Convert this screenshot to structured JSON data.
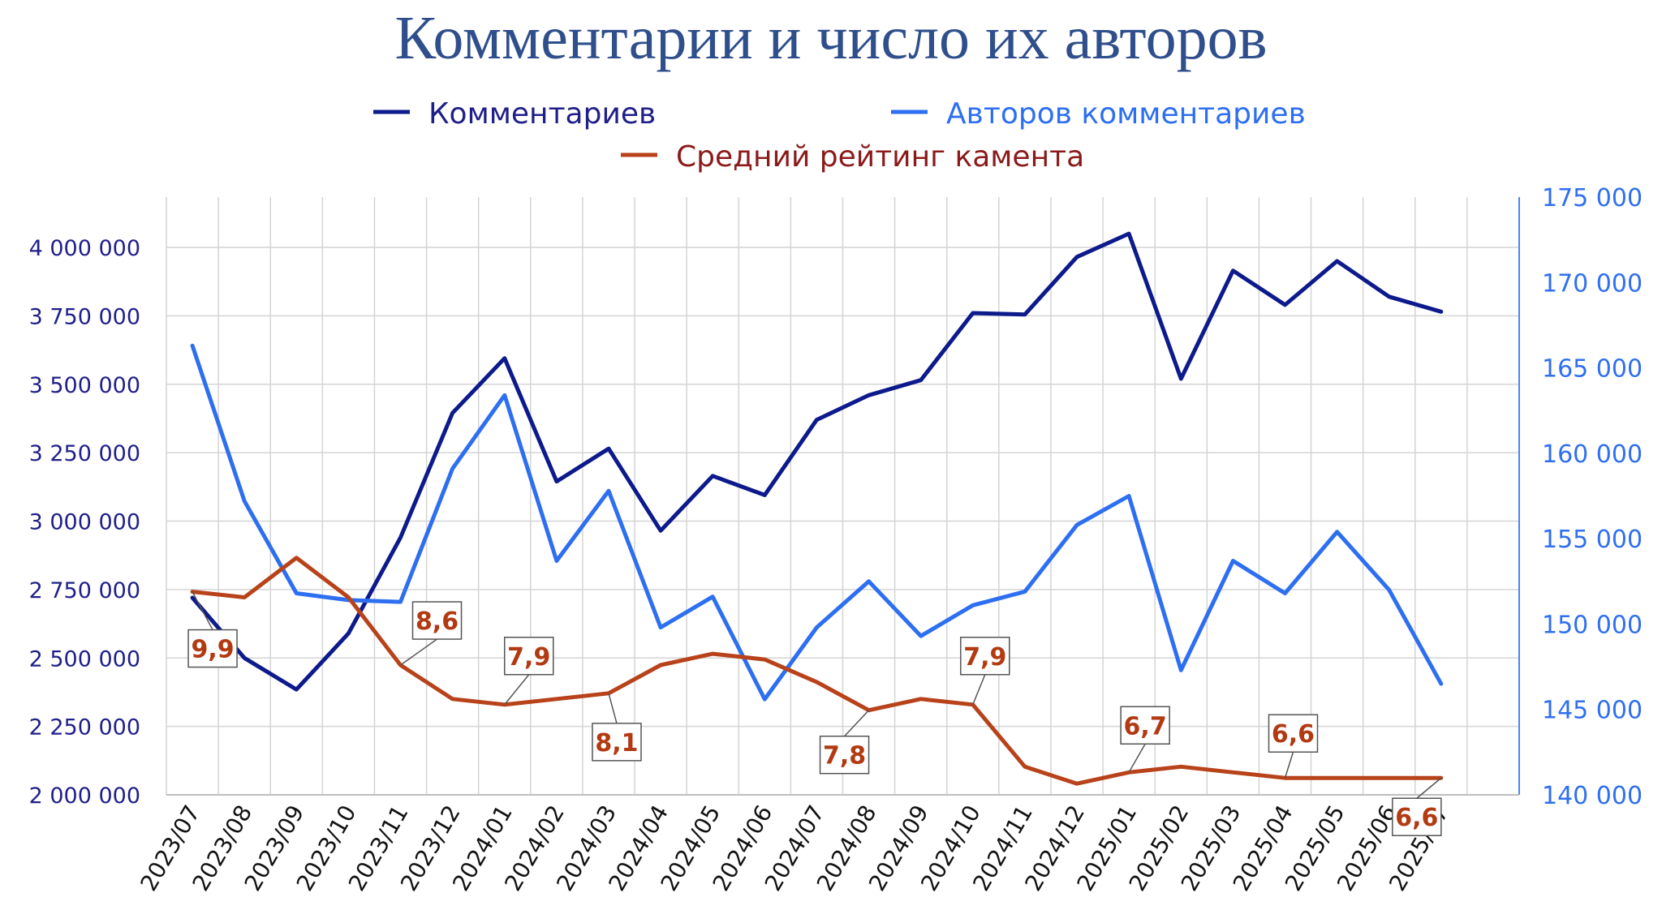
{
  "title": "Комментарии и число их авторов",
  "legend": [
    {
      "key": "comments",
      "label": "Комментариев",
      "color": "#0d1a8c"
    },
    {
      "key": "authors",
      "label": "Авторов комментариев",
      "color": "#2d6ff0"
    },
    {
      "key": "rating",
      "label": "Средний рейтинг камента",
      "color": "#b8421a"
    }
  ],
  "legend_text_colors": {
    "comments": "#1f1f8a",
    "authors": "#2d6ff0",
    "rating": "#8b1a1a"
  },
  "chart_data": {
    "type": "line",
    "categories": [
      "2023/07",
      "2023/08",
      "2023/09",
      "2023/10",
      "2023/11",
      "2023/12",
      "2024/01",
      "2024/02",
      "2024/03",
      "2024/04",
      "2024/05",
      "2024/06",
      "2024/07",
      "2024/08",
      "2024/09",
      "2024/10",
      "2024/11",
      "2024/12",
      "2025/01",
      "2025/02",
      "2025/03",
      "2025/04",
      "2025/05",
      "2025/06",
      "2025/07"
    ],
    "left_axis": {
      "ylim": [
        2000000,
        4000000
      ],
      "ticks": [
        2000000,
        2250000,
        2500000,
        2750000,
        3000000,
        3250000,
        3500000,
        3750000,
        4000000
      ],
      "tick_labels": [
        "2 000 000",
        "2 250 000",
        "2 500 000",
        "2 750 000",
        "3 000 000",
        "3 250 000",
        "3 500 000",
        "3 750 000",
        "4 000 000"
      ]
    },
    "right_axis": {
      "ylim": [
        140000,
        175000
      ],
      "ticks": [
        140000,
        145000,
        150000,
        155000,
        160000,
        165000,
        170000,
        175000
      ],
      "tick_labels": [
        "140 000",
        "145 000",
        "150 000",
        "155 000",
        "160 000",
        "165 000",
        "170 000",
        "175 000"
      ]
    },
    "grid": true,
    "series": [
      {
        "name": "Комментариев",
        "axis": "left",
        "color": "#0d1a8c",
        "values": [
          2720000,
          2500000,
          2385000,
          2590000,
          2940000,
          3395000,
          3595000,
          3145000,
          3265000,
          2965000,
          3165000,
          3095000,
          3370000,
          3460000,
          3515000,
          3760000,
          3755000,
          3965000,
          4050000,
          3520000,
          3915000,
          3790000,
          3950000,
          3820000,
          3765000
        ]
      },
      {
        "name": "Авторов комментариев",
        "axis": "right",
        "color": "#2d6ff0",
        "values": [
          166300,
          157200,
          151800,
          151400,
          151300,
          159100,
          163400,
          153700,
          157800,
          149800,
          151600,
          145600,
          149800,
          152500,
          149300,
          151100,
          151900,
          155800,
          157500,
          147300,
          153700,
          151800,
          155400,
          152000,
          146500
        ]
      },
      {
        "name": "Средний рейтинг камента",
        "axis": "left-scaled",
        "color": "#b8421a",
        "values": [
          9.9,
          9.8,
          10.5,
          9.8,
          8.6,
          8.0,
          7.9,
          8.0,
          8.1,
          8.6,
          8.8,
          8.7,
          8.3,
          7.8,
          8.0,
          7.9,
          6.8,
          6.5,
          6.7,
          6.8,
          6.7,
          6.6,
          6.6,
          6.6,
          6.6
        ]
      }
    ],
    "annotations": [
      {
        "index": 0,
        "text": "9,9"
      },
      {
        "index": 4,
        "text": "8,6"
      },
      {
        "index": 6,
        "text": "7,9"
      },
      {
        "index": 8,
        "text": "8,1"
      },
      {
        "index": 13,
        "text": "7,8"
      },
      {
        "index": 15,
        "text": "7,9"
      },
      {
        "index": 18,
        "text": "6,7"
      },
      {
        "index": 21,
        "text": "6,6"
      },
      {
        "index": 24,
        "text": "6,6"
      }
    ]
  }
}
